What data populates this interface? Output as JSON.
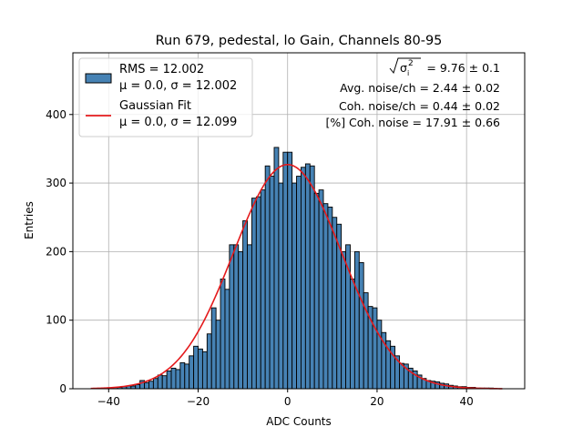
{
  "chart_data": {
    "type": "bar",
    "title": "Run 679, pedestal, lo Gain, Channels 80-95",
    "xlabel": "ADC Counts",
    "ylabel": "Entries",
    "xlim": [
      -48,
      53
    ],
    "ylim": [
      0,
      490
    ],
    "xticks": [
      -40,
      -20,
      0,
      20,
      40
    ],
    "yticks": [
      0,
      100,
      200,
      300,
      400
    ],
    "xtick_labels": [
      "−40",
      "−20",
      "0",
      "20",
      "40"
    ],
    "ytick_labels": [
      "0",
      "100",
      "200",
      "300",
      "400"
    ],
    "grid": true,
    "bin_width": 1,
    "bins": [
      -44,
      -43,
      -42,
      -41,
      -40,
      -39,
      -38,
      -37,
      -36,
      -35,
      -34,
      -33,
      -32,
      -31,
      -30,
      -29,
      -28,
      -27,
      -26,
      -25,
      -24,
      -23,
      -22,
      -21,
      -20,
      -19,
      -18,
      -17,
      -16,
      -15,
      -14,
      -13,
      -12,
      -11,
      -10,
      -9,
      -8,
      -7,
      -6,
      -5,
      -4,
      -3,
      -2,
      -1,
      0,
      1,
      2,
      3,
      4,
      5,
      6,
      7,
      8,
      9,
      10,
      11,
      12,
      13,
      14,
      15,
      16,
      17,
      18,
      19,
      20,
      21,
      22,
      23,
      24,
      25,
      26,
      27,
      28,
      29,
      30,
      31,
      32,
      33,
      34,
      35,
      36,
      37,
      38,
      39,
      40,
      41,
      42,
      43,
      44,
      45,
      46,
      47
    ],
    "series": [
      {
        "name": "RMS = 12.002",
        "name_line2": "μ = 0.0, σ = 12.002",
        "type": "histogram",
        "color": "#4682b4",
        "values": [
          0,
          0,
          0,
          1,
          1,
          2,
          2,
          3,
          4,
          4,
          6,
          12,
          9,
          11,
          15,
          20,
          19,
          26,
          30,
          28,
          38,
          36,
          48,
          62,
          58,
          54,
          80,
          118,
          100,
          160,
          145,
          210,
          210,
          200,
          245,
          210,
          278,
          280,
          290,
          325,
          310,
          352,
          300,
          345,
          345,
          300,
          310,
          323,
          328,
          325,
          285,
          290,
          270,
          265,
          250,
          240,
          200,
          210,
          160,
          200,
          184,
          140,
          120,
          118,
          100,
          82,
          70,
          62,
          48,
          37,
          36,
          30,
          26,
          20,
          15,
          12,
          11,
          10,
          8,
          7,
          5,
          4,
          3,
          3,
          2,
          2,
          1,
          1,
          1,
          1,
          0,
          0
        ]
      },
      {
        "name": "Gaussian Fit",
        "name_line2": "μ = 0.0, σ = 12.099",
        "type": "line",
        "color": "#e41a1c",
        "mu": 0.0,
        "sigma": 12.099,
        "amplitude": 327,
        "x_range": [
          -44,
          48
        ]
      }
    ],
    "legend": "top-left",
    "annotations": [
      {
        "prefix": "",
        "value": " = 9.76 ± 0.1"
      },
      {
        "text": "Avg. noise/ch = 2.44 ± 0.02"
      },
      {
        "text": "Coh. noise/ch = 0.44 ± 0.02"
      },
      {
        "text": "[%] Coh. noise = 17.91 ± 0.66"
      }
    ]
  }
}
